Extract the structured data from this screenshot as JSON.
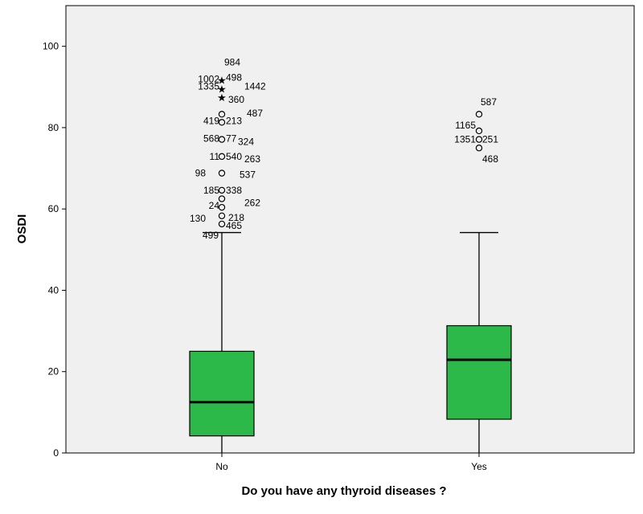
{
  "chart_data": {
    "type": "boxplot",
    "title": "",
    "xlabel": "Do you have any thyroid diseases ?",
    "ylabel": "OSDI",
    "ylim": [
      0,
      110
    ],
    "yticks": [
      0,
      20,
      40,
      60,
      80,
      100
    ],
    "grid": false,
    "colors": {
      "box": "#2db84a",
      "plot_bg": "#f0f0f0",
      "line": "#000000"
    },
    "categories": [
      "No",
      "Yes"
    ],
    "boxes": [
      {
        "category": "No",
        "whisker_low": 0,
        "q1": 4.2,
        "median": 12.5,
        "q3": 25,
        "whisker_high": 54.2,
        "outliers": [
          {
            "label": "984",
            "y": 91.7,
            "type": "star"
          },
          {
            "label": "1002",
            "y": 91.7,
            "type": "star"
          },
          {
            "label": "498",
            "y": 91.7,
            "type": "star"
          },
          {
            "label": "1442",
            "y": 89.6,
            "type": "star"
          },
          {
            "label": "1335",
            "y": 89.6,
            "type": "star"
          },
          {
            "label": "360",
            "y": 87.5,
            "type": "star"
          },
          {
            "label": "487",
            "y": 83.3,
            "type": "circle"
          },
          {
            "label": "419",
            "y": 81.3,
            "type": "circle"
          },
          {
            "label": "213",
            "y": 81.3,
            "type": "circle"
          },
          {
            "label": "568",
            "y": 77.1,
            "type": "circle"
          },
          {
            "label": "77",
            "y": 77.1,
            "type": "circle"
          },
          {
            "label": "324",
            "y": 77.1,
            "type": "circle"
          },
          {
            "label": "11",
            "y": 72.9,
            "type": "circle"
          },
          {
            "label": "540",
            "y": 72.9,
            "type": "circle"
          },
          {
            "label": "263",
            "y": 72.9,
            "type": "circle"
          },
          {
            "label": "98",
            "y": 68.8,
            "type": "circle"
          },
          {
            "label": "537",
            "y": 68.8,
            "type": "circle"
          },
          {
            "label": "185",
            "y": 64.6,
            "type": "circle"
          },
          {
            "label": "338",
            "y": 64.6,
            "type": "circle"
          },
          {
            "label": "262",
            "y": 62.5,
            "type": "circle"
          },
          {
            "label": "24",
            "y": 60.4,
            "type": "circle"
          },
          {
            "label": "218",
            "y": 58.3,
            "type": "circle"
          },
          {
            "label": "130",
            "y": 58.3,
            "type": "circle"
          },
          {
            "label": "465",
            "y": 56.3,
            "type": "circle"
          },
          {
            "label": "499",
            "y": 56.3,
            "type": "circle"
          }
        ]
      },
      {
        "category": "Yes",
        "whisker_low": 0,
        "q1": 8.3,
        "median": 22.9,
        "q3": 31.3,
        "whisker_high": 54.2,
        "outliers": [
          {
            "label": "587",
            "y": 83.3,
            "type": "circle"
          },
          {
            "label": "1165",
            "y": 79.2,
            "type": "circle"
          },
          {
            "label": "1351",
            "y": 77.1,
            "type": "circle"
          },
          {
            "label": "251",
            "y": 77.1,
            "type": "circle"
          },
          {
            "label": "468",
            "y": 75,
            "type": "circle"
          }
        ]
      }
    ]
  }
}
